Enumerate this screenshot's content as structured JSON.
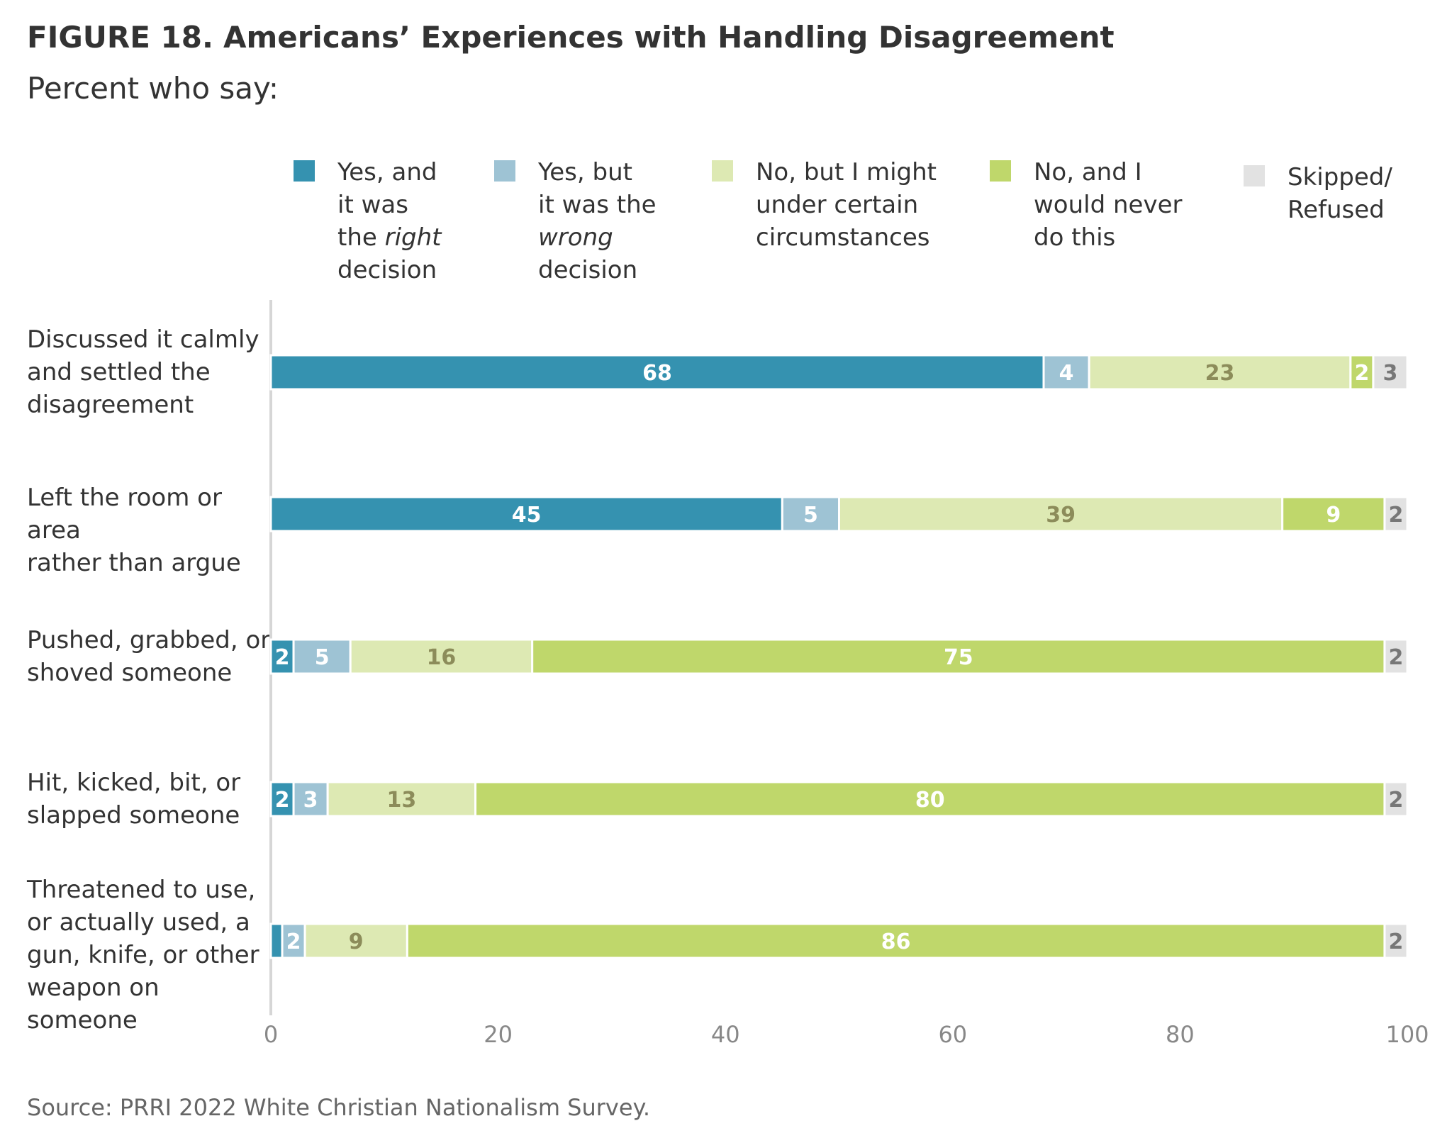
{
  "title": {
    "figure": "FIGURE 18.",
    "text": "Americans’ Experiences with Handling Disagreement",
    "subtitle": "Percent who say:"
  },
  "colors": {
    "yes_right": "#3592b0",
    "yes_wrong": "#9ec3d4",
    "no_might": "#dde9b3",
    "no_never": "#bfd76b",
    "skipped": "#e2e2e2"
  },
  "legend": [
    {
      "key": "yes_right",
      "lines": [
        [
          {
            "t": "Yes, and"
          }
        ],
        [
          {
            "t": "it was"
          }
        ],
        [
          {
            "t": "the "
          },
          {
            "t": "right",
            "i": true
          }
        ],
        [
          {
            "t": "decision"
          }
        ]
      ]
    },
    {
      "key": "yes_wrong",
      "lines": [
        [
          {
            "t": "Yes, but"
          }
        ],
        [
          {
            "t": "it was the"
          }
        ],
        [
          {
            "t": "wrong",
            "i": true
          }
        ],
        [
          {
            "t": "decision"
          }
        ]
      ]
    },
    {
      "key": "no_might",
      "lines": [
        [
          {
            "t": "No, but I might"
          }
        ],
        [
          {
            "t": "under certain"
          }
        ],
        [
          {
            "t": "circumstances"
          }
        ]
      ]
    },
    {
      "key": "no_never",
      "lines": [
        [
          {
            "t": "No, and I"
          }
        ],
        [
          {
            "t": "would never"
          }
        ],
        [
          {
            "t": "do this"
          }
        ]
      ]
    },
    {
      "key": "skipped",
      "lines": [
        [
          {
            "t": "Skipped/"
          }
        ],
        [
          {
            "t": "Refused"
          }
        ]
      ]
    }
  ],
  "chart_data": {
    "type": "bar",
    "orientation": "horizontal",
    "stacked": true,
    "categories": [
      "Discussed it calmly and settled the disagreement",
      "Left the room or area rather than argue",
      "Pushed, grabbed, or shoved someone",
      "Hit, kicked, bit, or slapped someone",
      "Threatened to use, or actually used, a gun, knife, or other weapon on someone"
    ],
    "category_lines": [
      [
        "Discussed it calmly",
        "and settled the",
        "disagreement"
      ],
      [
        "Left the room or area",
        "rather than argue"
      ],
      [
        "Pushed, grabbed, or",
        "shoved someone"
      ],
      [
        "Hit, kicked, bit, or",
        "slapped someone"
      ],
      [
        "Threatened to use,",
        "or actually used, a",
        "gun, knife, or other",
        "weapon on someone"
      ]
    ],
    "series": [
      {
        "key": "yes_right",
        "name": "Yes, and it was the right decision",
        "values": [
          68,
          45,
          2,
          2,
          1
        ],
        "labels": [
          "68",
          "45",
          "2",
          "2",
          ""
        ]
      },
      {
        "key": "yes_wrong",
        "name": "Yes, but it was the wrong decision",
        "values": [
          4,
          5,
          5,
          3,
          2
        ],
        "labels": [
          "4",
          "5",
          "5",
          "3",
          "2"
        ]
      },
      {
        "key": "no_might",
        "name": "No, but I might under certain circumstances",
        "values": [
          23,
          39,
          16,
          13,
          9
        ],
        "labels": [
          "23",
          "39",
          "16",
          "13",
          "9"
        ]
      },
      {
        "key": "no_never",
        "name": "No, and I would never do this",
        "values": [
          2,
          9,
          75,
          80,
          86
        ],
        "labels": [
          "2",
          "9",
          "75",
          "80",
          "86"
        ]
      },
      {
        "key": "skipped",
        "name": "Skipped/Refused",
        "values": [
          3,
          2,
          2,
          2,
          2
        ],
        "labels": [
          "3",
          "2",
          "2",
          "2",
          "2"
        ]
      }
    ],
    "label_colors": {
      "yes_right": "#ffffff",
      "yes_wrong": "#ffffff",
      "no_might": "#8c8c5a",
      "no_never": "#ffffff",
      "skipped": "#777777"
    },
    "xlim": [
      0,
      100
    ],
    "xticks": [
      0,
      20,
      40,
      60,
      80,
      100
    ],
    "xtick_labels": [
      "0",
      "20",
      "40",
      "60",
      "80",
      "100"
    ],
    "xlabel": "",
    "ylabel": "",
    "grid": false
  },
  "source": "Source: PRRI 2022 White Christian Nationalism Survey."
}
